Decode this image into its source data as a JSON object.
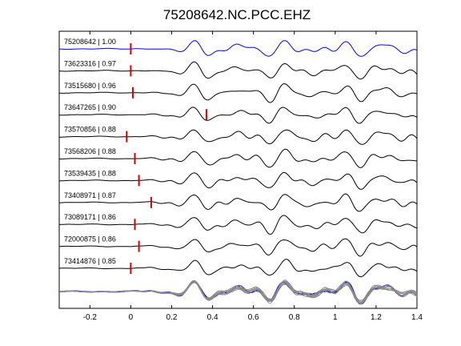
{
  "chart_data": {
    "type": "line",
    "title": "75208642.NC.PCC.EHZ",
    "xlabel": "",
    "ylabel": "",
    "xlim": [
      -0.35,
      1.4
    ],
    "x_ticks": [
      -0.2,
      0,
      0.2,
      0.4,
      0.6,
      0.8,
      1,
      1.2,
      1.4
    ],
    "x_tick_labels": [
      "-0.2",
      "0",
      "0.2",
      "0.4",
      "0.6",
      "0.8",
      "1",
      "1.2",
      "1.4"
    ],
    "grid": false,
    "legend": "none",
    "trace_color_reference": "#0000ff",
    "trace_color": "#000000",
    "pick_color": "#d40000",
    "stack_overlay_color": "#8a8a8a",
    "traces": [
      {
        "label": "75208642 | 1.00",
        "event_id": "75208642",
        "correlation": 1.0,
        "pick_time": 0.0,
        "reference": true
      },
      {
        "label": "73623316 | 0.97",
        "event_id": "73623316",
        "correlation": 0.97,
        "pick_time": 0.0
      },
      {
        "label": "73515680 | 0.96",
        "event_id": "73515680",
        "correlation": 0.96,
        "pick_time": 0.01
      },
      {
        "label": "73647265 | 0.90",
        "event_id": "73647265",
        "correlation": 0.9,
        "pick_time": 0.37
      },
      {
        "label": "73570856 | 0.88",
        "event_id": "73570856",
        "correlation": 0.88,
        "pick_time": -0.02
      },
      {
        "label": "73568206 | 0.88",
        "event_id": "73568206",
        "correlation": 0.88,
        "pick_time": 0.02
      },
      {
        "label": "73539435 | 0.88",
        "event_id": "73539435",
        "correlation": 0.88,
        "pick_time": 0.04
      },
      {
        "label": "73408971 | 0.87",
        "event_id": "73408971",
        "correlation": 0.87,
        "pick_time": 0.1
      },
      {
        "label": "73089171 | 0.86",
        "event_id": "73089171",
        "correlation": 0.86,
        "pick_time": 0.02
      },
      {
        "label": "72000875 | 0.86",
        "event_id": "72000875",
        "correlation": 0.86,
        "pick_time": 0.04
      },
      {
        "label": "73414876 | 0.85",
        "event_id": "73414876",
        "correlation": 0.85,
        "pick_time": 0.0
      }
    ]
  }
}
